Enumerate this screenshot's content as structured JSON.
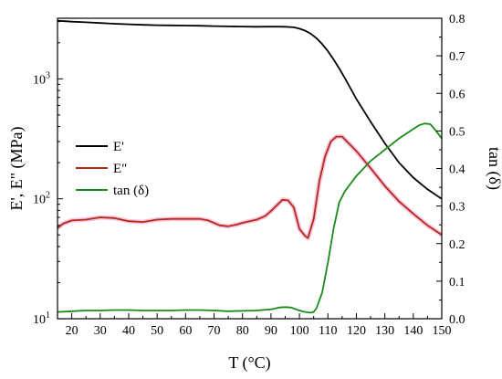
{
  "chart_data": {
    "type": "line",
    "xlabel": "T (°C)",
    "ylabel_left": "E', E\" (MPa)",
    "ylabel_right": "tan (δ)",
    "xlim": [
      15,
      150
    ],
    "ylim_left": [
      10,
      3200
    ],
    "ylim_left_scale": "log",
    "ylim_right": [
      0,
      0.8
    ],
    "x_ticks": [
      20,
      30,
      40,
      50,
      60,
      70,
      80,
      90,
      100,
      110,
      120,
      130,
      140,
      150
    ],
    "y_left_ticks": [
      {
        "value": 10,
        "base": "10",
        "exp": "1"
      },
      {
        "value": 100,
        "base": "10",
        "exp": "2"
      },
      {
        "value": 1000,
        "base": "10",
        "exp": "3"
      }
    ],
    "y_right_ticks": [
      "0.0",
      "0.1",
      "0.2",
      "0.3",
      "0.4",
      "0.5",
      "0.6",
      "0.7",
      "0.8"
    ],
    "legend_position": "left",
    "series": [
      {
        "name": "E'",
        "axis": "left",
        "color": "#000000",
        "x": [
          15,
          20,
          25,
          30,
          35,
          40,
          45,
          50,
          55,
          60,
          65,
          70,
          75,
          80,
          85,
          90,
          95,
          98,
          100,
          102,
          104,
          106,
          108,
          110,
          112,
          114,
          116,
          118,
          120,
          125,
          130,
          135,
          140,
          145,
          150
        ],
        "y": [
          3050,
          3000,
          2960,
          2920,
          2880,
          2850,
          2820,
          2800,
          2790,
          2780,
          2770,
          2750,
          2740,
          2730,
          2720,
          2730,
          2720,
          2690,
          2620,
          2520,
          2380,
          2180,
          1950,
          1700,
          1450,
          1220,
          1010,
          830,
          680,
          440,
          290,
          200,
          150,
          120,
          100
        ]
      },
      {
        "name": "E\"",
        "axis": "left",
        "color": "#b52a12",
        "x": [
          15,
          17,
          20,
          25,
          30,
          35,
          40,
          45,
          50,
          55,
          60,
          65,
          68,
          72,
          75,
          78,
          80,
          85,
          88,
          90,
          92,
          94,
          96,
          98,
          100,
          102,
          103,
          105,
          107,
          109,
          111,
          113,
          115,
          117,
          120,
          125,
          130,
          135,
          140,
          145,
          150
        ],
        "y": [
          57,
          62,
          66,
          67,
          70,
          69,
          65,
          64,
          67,
          68,
          68,
          68,
          66,
          60,
          59,
          61,
          63,
          67,
          72,
          79,
          88,
          98,
          97,
          85,
          56,
          49,
          47,
          68,
          140,
          225,
          300,
          330,
          330,
          295,
          250,
          180,
          128,
          95,
          75,
          60,
          50
        ]
      },
      {
        "name": "tan (δ)",
        "axis": "right",
        "color": "#1a8a1a",
        "x": [
          15,
          20,
          25,
          30,
          35,
          40,
          45,
          50,
          55,
          60,
          65,
          70,
          75,
          80,
          85,
          90,
          93,
          95,
          97,
          100,
          102,
          104,
          105,
          106,
          108,
          110,
          112,
          114,
          116,
          118,
          120,
          125,
          130,
          135,
          140,
          142,
          144,
          146,
          148,
          150
        ],
        "y": [
          0.018,
          0.02,
          0.022,
          0.022,
          0.023,
          0.023,
          0.022,
          0.022,
          0.022,
          0.023,
          0.023,
          0.022,
          0.02,
          0.021,
          0.022,
          0.025,
          0.03,
          0.031,
          0.03,
          0.022,
          0.018,
          0.016,
          0.018,
          0.028,
          0.07,
          0.15,
          0.24,
          0.31,
          0.34,
          0.36,
          0.38,
          0.42,
          0.45,
          0.48,
          0.505,
          0.515,
          0.52,
          0.518,
          0.5,
          0.48
        ]
      }
    ]
  }
}
